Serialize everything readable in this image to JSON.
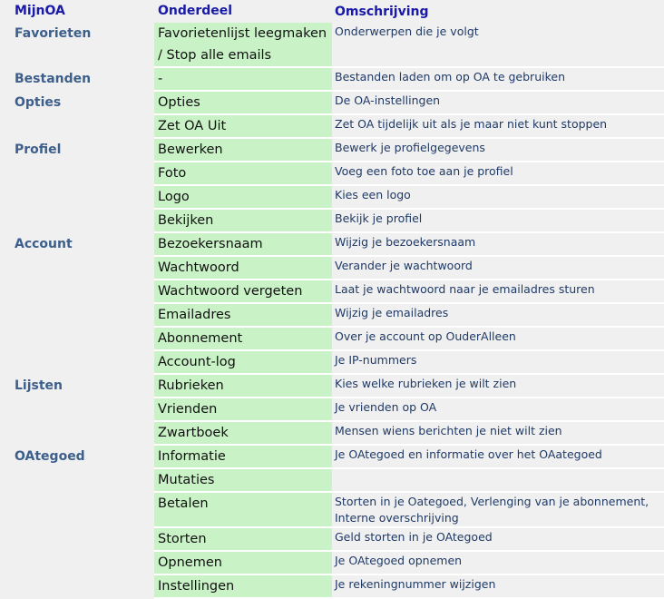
{
  "headers": [
    "MijnOA",
    "Onderdeel",
    "Omschrijving"
  ],
  "rows": [
    {
      "category": "Favorieten",
      "part": "Favorietenlijst leegmaken / Stop alle emails",
      "desc": "Onderwerpen die je volgt"
    },
    {
      "category": "Bestanden",
      "part": "-",
      "desc": "Bestanden laden om op OA te gebruiken"
    },
    {
      "category": "Opties",
      "part": "Opties",
      "desc": "De OA-instellingen"
    },
    {
      "category": "",
      "part": "Zet OA Uit",
      "desc": "Zet OA tijdelijk uit als je maar niet kunt stoppen"
    },
    {
      "category": "Profiel",
      "part": "Bewerken",
      "desc": "Bewerk je profielgegevens"
    },
    {
      "category": "",
      "part": "Foto",
      "desc": "Voeg een foto toe aan je profiel"
    },
    {
      "category": "",
      "part": "Logo",
      "desc": "Kies een logo"
    },
    {
      "category": "",
      "part": "Bekijken",
      "desc": "Bekijk je profiel"
    },
    {
      "category": "Account",
      "part": "Bezoekersnaam",
      "desc": "Wijzig je bezoekersnaam"
    },
    {
      "category": "",
      "part": "Wachtwoord",
      "desc": "Verander je wachtwoord"
    },
    {
      "category": "",
      "part": "Wachtwoord vergeten",
      "desc": "Laat je wachtwoord naar je emailadres sturen"
    },
    {
      "category": "",
      "part": "Emailadres",
      "desc": "Wijzig je emailadres"
    },
    {
      "category": "",
      "part": "Abonnement",
      "desc": "Over je account op OuderAlleen"
    },
    {
      "category": "",
      "part": "Account-log",
      "desc": "Je IP-nummers"
    },
    {
      "category": "Lijsten",
      "part": "Rubrieken",
      "desc": "Kies welke rubrieken je wilt zien"
    },
    {
      "category": "",
      "part": "Vrienden",
      "desc": "Je vrienden op OA"
    },
    {
      "category": "",
      "part": "Zwartboek",
      "desc": "Mensen wiens berichten je niet wilt zien"
    },
    {
      "category": "OAtegoed",
      "part": "Informatie",
      "desc": "Je OAtegoed en informatie over het OAategoed"
    },
    {
      "category": "",
      "part": "Mutaties",
      "desc": ""
    },
    {
      "category": "",
      "part": "Betalen",
      "desc": "Storten in je Oategoed, Verlenging van je abonnement, Interne overschrijving"
    },
    {
      "category": "",
      "part": "Storten",
      "desc": "Geld storten in je OAtegoed"
    },
    {
      "category": "",
      "part": "Opnemen",
      "desc": "Je OAtegoed opnemen"
    },
    {
      "category": "",
      "part": "Instellingen",
      "desc": "Je rekeningnummer wijzigen"
    }
  ]
}
